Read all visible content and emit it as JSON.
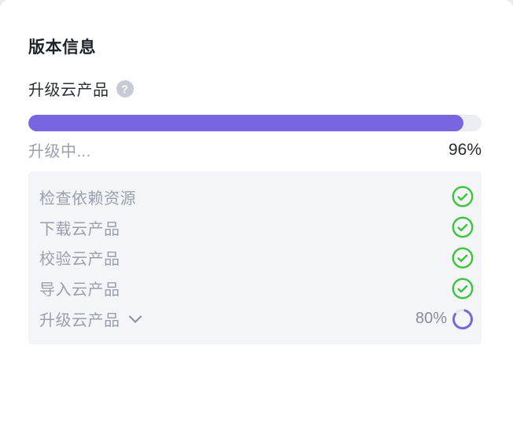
{
  "page": {
    "title": "版本信息"
  },
  "upgrade": {
    "label": "升级云产品",
    "help_icon": "question-mark",
    "status_text": "升级中...",
    "progress_percent": 96,
    "progress_percent_text": "96%"
  },
  "steps": {
    "items": [
      {
        "label": "检查依赖资源",
        "status": "done",
        "icon": "check-circle-icon"
      },
      {
        "label": "下载云产品",
        "status": "done",
        "icon": "check-circle-icon"
      },
      {
        "label": "校验云产品",
        "status": "done",
        "icon": "check-circle-icon"
      },
      {
        "label": "导入云产品",
        "status": "done",
        "icon": "check-circle-icon"
      },
      {
        "label": "升级云产品",
        "status": "in-progress",
        "icon": "spinner-icon",
        "percent": 80,
        "percent_text": "80%",
        "expandable": true
      }
    ]
  },
  "colors": {
    "accent_purple": "#7766e0",
    "progress_track": "#eaedf2",
    "success_green": "#3dc43d",
    "muted_text": "#9aa0ab",
    "dark_text": "#1f2329",
    "panel_background": "#f3f5f8",
    "help_icon_background": "#c6cbd4"
  }
}
